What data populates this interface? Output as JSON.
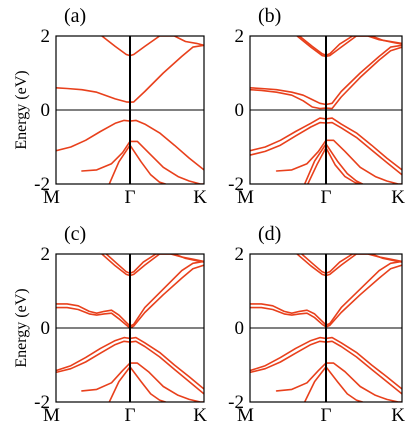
{
  "colors": {
    "band": "#e8401c",
    "axis": "#000000"
  },
  "chart_data": [
    {
      "type": "line",
      "panel_label": "(a)",
      "ylabel": "Energy (eV)",
      "ylim": [
        -2,
        2
      ],
      "yticks": [
        "2",
        "0",
        "-2"
      ],
      "xticks": [
        "M",
        "Γ",
        "K"
      ],
      "series": [
        {
          "x": [
            0.0,
            0.15,
            0.35,
            0.55,
            0.8,
            0.95,
            1.0,
            1.05,
            1.2,
            1.45,
            1.7,
            1.85,
            2.0
          ],
          "y": [
            0.6,
            0.58,
            0.55,
            0.48,
            0.3,
            0.22,
            0.21,
            0.22,
            0.5,
            1.0,
            1.45,
            1.7,
            1.75
          ]
        },
        {
          "x": [
            0.62,
            0.8,
            0.95,
            1.0,
            1.05,
            1.2,
            1.4,
            1.6,
            1.75,
            1.9,
            2.0
          ],
          "y": [
            2.0,
            1.72,
            1.5,
            1.47,
            1.5,
            1.72,
            2.0,
            2.0,
            1.85,
            1.8,
            1.75
          ]
        },
        {
          "x": [
            0.0,
            0.2,
            0.4,
            0.6,
            0.8,
            0.92,
            1.0,
            1.08,
            1.2,
            1.4,
            1.6,
            1.8,
            2.0
          ],
          "y": [
            -1.1,
            -1.0,
            -0.82,
            -0.58,
            -0.36,
            -0.28,
            -0.3,
            -0.28,
            -0.38,
            -0.62,
            -0.95,
            -1.3,
            -1.62
          ]
        },
        {
          "x": [
            0.35,
            0.55,
            0.75,
            0.9,
            1.0,
            1.1,
            1.25,
            1.45,
            1.65,
            1.8,
            1.95,
            2.0
          ],
          "y": [
            -1.65,
            -1.62,
            -1.45,
            -1.15,
            -0.85,
            -0.85,
            -1.15,
            -1.55,
            -1.8,
            -1.92,
            -2.0,
            -2.0
          ]
        },
        {
          "x": [
            0.72,
            0.85,
            1.0,
            1.15,
            1.28,
            1.4,
            1.48
          ],
          "y": [
            -2.0,
            -1.4,
            -0.95,
            -1.4,
            -1.75,
            -1.95,
            -2.0
          ]
        }
      ]
    },
    {
      "type": "line",
      "panel_label": "(b)",
      "ylim": [
        -2,
        2
      ],
      "yticks": [
        "2",
        "0",
        "-2"
      ],
      "xticks": [
        "M",
        "Γ",
        "K"
      ],
      "series": [
        {
          "x": [
            0.0,
            0.15,
            0.35,
            0.55,
            0.7,
            0.82,
            0.92,
            1.0,
            1.08,
            1.2,
            1.45,
            1.7,
            1.85,
            2.0
          ],
          "y": [
            0.6,
            0.58,
            0.55,
            0.48,
            0.4,
            0.28,
            0.18,
            0.15,
            0.18,
            0.5,
            1.0,
            1.45,
            1.7,
            1.75
          ]
        },
        {
          "x": [
            0.0,
            0.15,
            0.35,
            0.55,
            0.7,
            0.82,
            0.92,
            1.0,
            1.08,
            1.2,
            1.45,
            1.7,
            1.85,
            2.0
          ],
          "y": [
            0.55,
            0.53,
            0.48,
            0.4,
            0.25,
            0.08,
            0.04,
            0.05,
            0.04,
            0.35,
            0.88,
            1.35,
            1.6,
            1.7
          ]
        },
        {
          "x": [
            0.62,
            0.8,
            0.95,
            1.0,
            1.05,
            1.2,
            1.4,
            1.6,
            1.75,
            1.9,
            2.0
          ],
          "y": [
            2.0,
            1.7,
            1.47,
            1.45,
            1.47,
            1.7,
            2.0,
            2.0,
            1.88,
            1.82,
            1.78
          ]
        },
        {
          "x": [
            0.65,
            0.82,
            0.95,
            1.0,
            1.05,
            1.18,
            1.35,
            1.55,
            1.7,
            1.85,
            2.0
          ],
          "y": [
            2.0,
            1.72,
            1.52,
            1.48,
            1.52,
            1.78,
            2.0,
            2.0,
            1.9,
            1.85,
            1.8
          ]
        },
        {
          "x": [
            0.0,
            0.2,
            0.4,
            0.6,
            0.8,
            0.92,
            1.0,
            1.08,
            1.2,
            1.4,
            1.6,
            1.8,
            2.0
          ],
          "y": [
            -1.1,
            -1.0,
            -0.82,
            -0.58,
            -0.36,
            -0.22,
            -0.24,
            -0.22,
            -0.38,
            -0.62,
            -0.95,
            -1.3,
            -1.62
          ]
        },
        {
          "x": [
            0.0,
            0.2,
            0.4,
            0.6,
            0.8,
            0.92,
            1.0,
            1.08,
            1.2,
            1.4,
            1.6,
            1.8,
            2.0
          ],
          "y": [
            -1.22,
            -1.12,
            -0.95,
            -0.7,
            -0.46,
            -0.34,
            -0.35,
            -0.34,
            -0.48,
            -0.74,
            -1.08,
            -1.42,
            -1.75
          ]
        },
        {
          "x": [
            0.35,
            0.55,
            0.75,
            0.9,
            1.0,
            1.1,
            1.25,
            1.45,
            1.65,
            1.8,
            1.95,
            2.0
          ],
          "y": [
            -1.65,
            -1.62,
            -1.45,
            -1.12,
            -0.82,
            -0.82,
            -1.12,
            -1.55,
            -1.8,
            -1.92,
            -2.0,
            -2.0
          ]
        },
        {
          "x": [
            0.72,
            0.85,
            1.0,
            1.15,
            1.28,
            1.4,
            1.48
          ],
          "y": [
            -2.0,
            -1.38,
            -0.92,
            -1.38,
            -1.72,
            -1.92,
            -2.0
          ]
        },
        {
          "x": [
            0.76,
            0.88,
            1.0,
            1.12,
            1.25,
            1.38,
            1.45
          ],
          "y": [
            -2.0,
            -1.48,
            -1.02,
            -1.48,
            -1.8,
            -1.96,
            -2.0
          ]
        }
      ]
    },
    {
      "type": "line",
      "panel_label": "(c)",
      "ylabel": "Energy (eV)",
      "ylim": [
        -2,
        2
      ],
      "yticks": [
        "2",
        "0",
        "-2"
      ],
      "xticks": [
        "M",
        "Γ",
        "K"
      ],
      "series": [
        {
          "x": [
            0.0,
            0.15,
            0.3,
            0.45,
            0.55,
            0.65,
            0.75,
            0.85,
            0.95,
            1.0,
            1.05,
            1.2,
            1.45,
            1.7,
            1.85,
            2.0
          ],
          "y": [
            0.65,
            0.65,
            0.6,
            0.45,
            0.4,
            0.45,
            0.48,
            0.35,
            0.15,
            0.05,
            0.1,
            0.55,
            1.05,
            1.55,
            1.75,
            1.8
          ]
        },
        {
          "x": [
            0.0,
            0.15,
            0.3,
            0.45,
            0.55,
            0.65,
            0.75,
            0.85,
            0.95,
            1.0,
            1.05,
            1.2,
            1.45,
            1.7,
            1.85,
            2.0
          ],
          "y": [
            0.55,
            0.55,
            0.5,
            0.38,
            0.35,
            0.38,
            0.4,
            0.25,
            0.08,
            0.0,
            0.05,
            0.42,
            0.9,
            1.35,
            1.6,
            1.7
          ]
        },
        {
          "x": [
            0.62,
            0.8,
            0.95,
            1.0,
            1.05,
            1.2,
            1.4,
            1.6,
            1.75,
            1.9,
            2.0
          ],
          "y": [
            2.0,
            1.68,
            1.45,
            1.42,
            1.45,
            1.7,
            2.0,
            2.0,
            1.88,
            1.82,
            1.78
          ]
        },
        {
          "x": [
            0.68,
            0.82,
            0.95,
            1.0,
            1.05,
            1.18,
            1.35,
            1.55,
            1.7,
            1.85,
            2.0
          ],
          "y": [
            2.0,
            1.75,
            1.52,
            1.48,
            1.52,
            1.78,
            2.0,
            2.0,
            1.92,
            1.86,
            1.8
          ]
        },
        {
          "x": [
            0.0,
            0.2,
            0.4,
            0.6,
            0.8,
            0.92,
            1.0,
            1.08,
            1.2,
            1.4,
            1.6,
            1.8,
            2.0
          ],
          "y": [
            -1.15,
            -1.02,
            -0.8,
            -0.55,
            -0.34,
            -0.26,
            -0.28,
            -0.26,
            -0.4,
            -0.66,
            -1.0,
            -1.32,
            -1.65
          ]
        },
        {
          "x": [
            0.0,
            0.2,
            0.4,
            0.6,
            0.8,
            0.92,
            1.0,
            1.08,
            1.2,
            1.4,
            1.6,
            1.8,
            2.0
          ],
          "y": [
            -1.2,
            -1.1,
            -0.92,
            -0.68,
            -0.45,
            -0.36,
            -0.38,
            -0.36,
            -0.5,
            -0.78,
            -1.12,
            -1.45,
            -1.78
          ]
        },
        {
          "x": [
            0.35,
            0.55,
            0.75,
            0.9,
            1.0,
            1.1,
            1.25,
            1.45,
            1.65,
            1.8,
            1.95,
            2.0
          ],
          "y": [
            -1.7,
            -1.66,
            -1.48,
            -1.15,
            -0.95,
            -0.95,
            -1.18,
            -1.58,
            -1.82,
            -1.93,
            -2.0,
            -2.0
          ]
        },
        {
          "x": [
            0.72,
            0.85,
            1.0,
            1.15,
            1.28,
            1.4,
            1.48
          ],
          "y": [
            -2.0,
            -1.45,
            -1.05,
            -1.45,
            -1.78,
            -1.95,
            -2.0
          ]
        }
      ]
    },
    {
      "type": "line",
      "panel_label": "(d)",
      "ylim": [
        -2,
        2
      ],
      "yticks": [
        "2",
        "0",
        "-2"
      ],
      "xticks": [
        "M",
        "Γ",
        "K"
      ],
      "series": [
        {
          "x": [
            0.0,
            0.15,
            0.3,
            0.45,
            0.55,
            0.65,
            0.75,
            0.85,
            0.95,
            1.0,
            1.05,
            1.2,
            1.45,
            1.7,
            1.85,
            2.0
          ],
          "y": [
            0.65,
            0.65,
            0.6,
            0.45,
            0.4,
            0.45,
            0.48,
            0.38,
            0.18,
            0.08,
            0.12,
            0.55,
            1.05,
            1.55,
            1.75,
            1.8
          ]
        },
        {
          "x": [
            0.0,
            0.15,
            0.3,
            0.45,
            0.55,
            0.65,
            0.75,
            0.85,
            0.95,
            1.0,
            1.05,
            1.2,
            1.45,
            1.7,
            1.85,
            2.0
          ],
          "y": [
            0.55,
            0.55,
            0.5,
            0.38,
            0.35,
            0.38,
            0.4,
            0.28,
            0.1,
            0.03,
            0.07,
            0.42,
            0.9,
            1.35,
            1.6,
            1.7
          ]
        },
        {
          "x": [
            0.62,
            0.8,
            0.95,
            1.0,
            1.05,
            1.2,
            1.4,
            1.6,
            1.75,
            1.9,
            2.0
          ],
          "y": [
            2.0,
            1.68,
            1.45,
            1.42,
            1.45,
            1.7,
            2.0,
            2.0,
            1.88,
            1.82,
            1.78
          ]
        },
        {
          "x": [
            0.68,
            0.82,
            0.95,
            1.0,
            1.05,
            1.18,
            1.35,
            1.55,
            1.7,
            1.85,
            2.0
          ],
          "y": [
            2.0,
            1.75,
            1.52,
            1.48,
            1.52,
            1.78,
            2.0,
            2.0,
            1.92,
            1.86,
            1.8
          ]
        },
        {
          "x": [
            0.0,
            0.2,
            0.4,
            0.6,
            0.8,
            0.92,
            1.0,
            1.08,
            1.2,
            1.4,
            1.6,
            1.8,
            2.0
          ],
          "y": [
            -1.15,
            -1.02,
            -0.8,
            -0.55,
            -0.34,
            -0.26,
            -0.28,
            -0.26,
            -0.4,
            -0.66,
            -1.0,
            -1.32,
            -1.65
          ]
        },
        {
          "x": [
            0.0,
            0.2,
            0.4,
            0.6,
            0.8,
            0.92,
            1.0,
            1.08,
            1.2,
            1.4,
            1.6,
            1.8,
            2.0
          ],
          "y": [
            -1.2,
            -1.1,
            -0.92,
            -0.68,
            -0.45,
            -0.36,
            -0.38,
            -0.36,
            -0.5,
            -0.78,
            -1.12,
            -1.45,
            -1.78
          ]
        },
        {
          "x": [
            0.35,
            0.55,
            0.75,
            0.9,
            1.0,
            1.1,
            1.25,
            1.45,
            1.65,
            1.8,
            1.95,
            2.0
          ],
          "y": [
            -1.7,
            -1.66,
            -1.48,
            -1.15,
            -0.95,
            -0.95,
            -1.18,
            -1.58,
            -1.82,
            -1.93,
            -2.0,
            -2.0
          ]
        },
        {
          "x": [
            0.72,
            0.85,
            1.0,
            1.15,
            1.28,
            1.4,
            1.48
          ],
          "y": [
            -2.0,
            -1.45,
            -1.05,
            -1.45,
            -1.78,
            -1.95,
            -2.0
          ]
        }
      ]
    }
  ]
}
